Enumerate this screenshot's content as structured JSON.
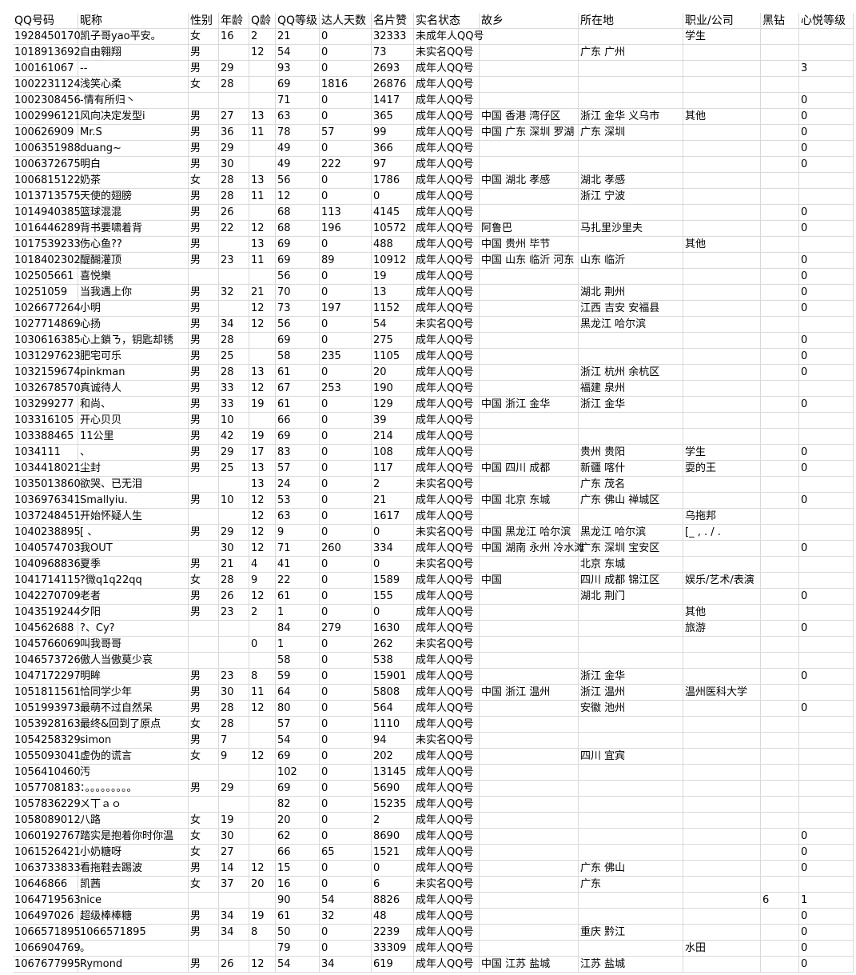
{
  "header": [
    "QQ号码",
    "昵称",
    "性别",
    "年龄",
    "Q龄",
    "QQ等级",
    "达人天数",
    "名片赞",
    "实名状态",
    "故乡",
    "所在地",
    "职业/公司",
    "黑钻",
    "心悦等级"
  ],
  "rows": [
    [
      1928450170,
      "凯子哥yao平安。",
      "女",
      16,
      2,
      21,
      0,
      32333,
      "未成年人QQ号",
      null,
      null,
      "学生",
      null,
      null
    ],
    [
      1018913692,
      "自由翱翔",
      "男",
      null,
      12,
      54,
      0,
      73,
      "未实名QQ号",
      null,
      "广东 广州",
      null,
      null,
      null
    ],
    [
      100161067,
      "--",
      "男",
      29,
      null,
      93,
      0,
      2693,
      "成年人QQ号",
      null,
      null,
      null,
      null,
      3
    ],
    [
      1002231124,
      "浅笑心柔",
      "女",
      28,
      null,
      69,
      1816,
      26876,
      "成年人QQ号",
      null,
      null,
      null,
      null,
      null
    ],
    [
      1002308456,
      "-情有所归丶",
      null,
      null,
      null,
      71,
      0,
      1417,
      "成年人QQ号",
      null,
      null,
      null,
      null,
      0
    ],
    [
      1002996121,
      "风向决定发型i",
      "男",
      27,
      13,
      63,
      0,
      365,
      "成年人QQ号",
      "中国 香港 湾仔区",
      "浙江 金华 义乌市",
      "其他",
      null,
      0
    ],
    [
      100626909,
      "Mr.S",
      "男",
      36,
      11,
      78,
      57,
      99,
      "成年人QQ号",
      "中国 广东 深圳 罗湖",
      "广东 深圳",
      null,
      null,
      0
    ],
    [
      1006351988,
      "duang~",
      "男",
      29,
      null,
      49,
      0,
      366,
      "成年人QQ号",
      null,
      null,
      null,
      null,
      0
    ],
    [
      1006372675,
      "明白",
      "男",
      30,
      null,
      49,
      222,
      97,
      "成年人QQ号",
      null,
      null,
      null,
      null,
      0
    ],
    [
      1006815122,
      "奶茶",
      "女",
      28,
      13,
      56,
      0,
      1786,
      "成年人QQ号",
      "中国 湖北 孝感",
      "湖北 孝感",
      null,
      null,
      null
    ],
    [
      1013713575,
      "天使的翅膀",
      "男",
      28,
      11,
      12,
      0,
      0,
      "成年人QQ号",
      null,
      "浙江 宁波",
      null,
      null,
      null
    ],
    [
      1014940385,
      "篮球混混",
      "男",
      26,
      null,
      68,
      113,
      4145,
      "成年人QQ号",
      null,
      null,
      null,
      null,
      0
    ],
    [
      1016446289,
      "背书要啸着背",
      "男",
      22,
      12,
      68,
      196,
      10572,
      "成年人QQ号",
      "阿鲁巴",
      "马扎里沙里夫",
      null,
      null,
      0
    ],
    [
      1017539233,
      "伤心鱼??",
      "男",
      null,
      13,
      69,
      0,
      488,
      "成年人QQ号",
      "中国 贵州 毕节",
      null,
      "其他",
      null,
      null
    ],
    [
      1018402302,
      "醍醐灌顶",
      "男",
      23,
      11,
      69,
      89,
      10912,
      "成年人QQ号",
      "中国 山东 临沂 河东",
      "山东 临沂",
      null,
      null,
      0
    ],
    [
      102505661,
      "喜悦樂",
      null,
      null,
      null,
      56,
      0,
      19,
      "成年人QQ号",
      null,
      null,
      null,
      null,
      0
    ],
    [
      10251059,
      "当我遇上你",
      "男",
      32,
      21,
      70,
      0,
      13,
      "成年人QQ号",
      null,
      "湖北 荆州",
      null,
      null,
      0
    ],
    [
      1026677264,
      "小明",
      "男",
      null,
      12,
      73,
      197,
      1152,
      "成年人QQ号",
      null,
      "江西 吉安 安福县",
      null,
      null,
      0
    ],
    [
      1027714869,
      "心扬",
      "男",
      34,
      12,
      56,
      0,
      54,
      "未实名QQ号",
      null,
      "黑龙江 哈尔滨",
      null,
      null,
      null
    ],
    [
      1030616385,
      "心上鎖ㄋ，钥匙却锈",
      "男",
      28,
      null,
      69,
      0,
      275,
      "成年人QQ号",
      null,
      null,
      null,
      null,
      0
    ],
    [
      1031297623,
      "肥宅可乐",
      "男",
      25,
      null,
      58,
      235,
      1105,
      "成年人QQ号",
      null,
      null,
      null,
      null,
      0
    ],
    [
      1032159674,
      "pinkman",
      "男",
      28,
      13,
      61,
      0,
      20,
      "成年人QQ号",
      null,
      "浙江 杭州 余杭区",
      null,
      null,
      0
    ],
    [
      1032678570,
      "真诚待人",
      "男",
      33,
      12,
      67,
      253,
      190,
      "成年人QQ号",
      null,
      "福建 泉州",
      null,
      null,
      null
    ],
    [
      103299277,
      "   和尚、",
      "男",
      33,
      19,
      61,
      0,
      129,
      "成年人QQ号",
      "中国 浙江 金华",
      "浙江 金华",
      null,
      null,
      0
    ],
    [
      103316105,
      "开心贝贝",
      "男",
      10,
      null,
      66,
      0,
      39,
      "成年人QQ号",
      null,
      null,
      null,
      null,
      null
    ],
    [
      103388465,
      "11公里",
      "男",
      42,
      19,
      69,
      0,
      214,
      "成年人QQ号",
      null,
      null,
      null,
      null,
      null
    ],
    [
      1034111,
      "、",
      "男",
      29,
      17,
      83,
      0,
      108,
      "成年人QQ号",
      null,
      "贵州 贵阳",
      "学生",
      null,
      0
    ],
    [
      1034418021,
      "尘封",
      "男",
      25,
      13,
      57,
      0,
      117,
      "成年人QQ号",
      "中国 四川 成都",
      "新疆 喀什",
      "耍的王",
      null,
      0
    ],
    [
      1035013860,
      "欲哭、已无泪",
      null,
      null,
      13,
      24,
      0,
      2,
      "未实名QQ号",
      null,
      "广东 茂名",
      null,
      null,
      null
    ],
    [
      1036976341,
      "  Smallyiu.",
      "男",
      10,
      12,
      53,
      0,
      21,
      "成年人QQ号",
      "中国 北京 东城",
      "广东 佛山 禅城区",
      null,
      null,
      0
    ],
    [
      1037248451,
      "开始怀疑人生",
      null,
      null,
      12,
      63,
      0,
      1617,
      "成年人QQ号",
      null,
      null,
      "乌拖邦",
      null,
      null
    ],
    [
      1040238895,
      "   [  、",
      "男",
      29,
      12,
      9,
      0,
      0,
      "未实名QQ号",
      "中国 黑龙江 哈尔滨",
      "黑龙江 哈尔滨",
      "[_ , . / .",
      null,
      null
    ],
    [
      1040574703,
      "我OUT",
      null,
      30,
      12,
      71,
      260,
      334,
      "成年人QQ号",
      "中国 湖南 永州 冷水滩",
      "广东 深圳 宝安区",
      null,
      null,
      0
    ],
    [
      1040968836,
      "夏季",
      "男",
      21,
      4,
      41,
      0,
      0,
      "未实名QQ号",
      null,
      "北京 东城",
      null,
      null,
      null
    ],
    [
      1041714115,
      "?微q1q22qq",
      "女",
      28,
      9,
      22,
      0,
      1589,
      "成年人QQ号",
      "中国",
      "四川 成都 锦江区",
      "娱乐/艺术/表演",
      null,
      null
    ],
    [
      1042270709,
      "老者",
      "男",
      26,
      12,
      61,
      0,
      155,
      "成年人QQ号",
      null,
      "湖北 荆门",
      null,
      null,
      0
    ],
    [
      1043519244,
      "夕阳",
      "男",
      23,
      2,
      1,
      0,
      0,
      "成年人QQ号",
      null,
      null,
      "其他",
      null,
      null
    ],
    [
      104562688,
      "?、Cy?",
      null,
      null,
      null,
      84,
      279,
      1630,
      "成年人QQ号",
      null,
      null,
      "旅游",
      null,
      0
    ],
    [
      1045766069,
      "叫我哥哥",
      null,
      null,
      0,
      1,
      0,
      262,
      "未实名QQ号",
      null,
      null,
      null,
      null,
      null
    ],
    [
      1046573726,
      "傲人当傲莫少哀",
      null,
      null,
      null,
      58,
      0,
      538,
      "成年人QQ号",
      null,
      null,
      null,
      null,
      null
    ],
    [
      1047172297,
      "明眸",
      "男",
      23,
      8,
      59,
      0,
      15901,
      "成年人QQ号",
      null,
      "浙江 金华",
      null,
      null,
      0
    ],
    [
      1051811561,
      "恰同学少年",
      "男",
      30,
      11,
      64,
      0,
      5808,
      "成年人QQ号",
      "中国 浙江 温州",
      "浙江 温州",
      "温州医科大学",
      null,
      null
    ],
    [
      1051993973,
      "最萌不过自然呆",
      "男",
      28,
      12,
      80,
      0,
      564,
      "成年人QQ号",
      null,
      "安徽 池州",
      null,
      null,
      0
    ],
    [
      1053928163,
      "最终&回到了原点",
      "女",
      28,
      null,
      57,
      0,
      1110,
      "成年人QQ号",
      null,
      null,
      null,
      null,
      null
    ],
    [
      1054258329,
      "simon",
      "男",
      7,
      null,
      54,
      0,
      94,
      "未实名QQ号",
      null,
      null,
      null,
      null,
      null
    ],
    [
      1055093041,
      "虚伪的谎言",
      "女",
      9,
      12,
      69,
      0,
      202,
      "成年人QQ号",
      null,
      "四川 宜宾",
      null,
      null,
      null
    ],
    [
      1056410460,
      "汚",
      null,
      null,
      null,
      102,
      0,
      13145,
      "成年人QQ号",
      null,
      null,
      null,
      null,
      null
    ],
    [
      1057708183,
      "：。。。。。。。。。",
      "男",
      29,
      null,
      69,
      0,
      5690,
      "成年人QQ号",
      null,
      null,
      null,
      null,
      null
    ],
    [
      1057836229,
      "ㄨ丅ａｏ",
      null,
      null,
      null,
      82,
      0,
      15235,
      "成年人QQ号",
      null,
      null,
      null,
      null,
      null
    ],
    [
      1058089012,
      "八路",
      "女",
      19,
      null,
      20,
      0,
      2,
      "成年人QQ号",
      null,
      null,
      null,
      null,
      null
    ],
    [
      1060192767,
      "踏实是抱着你时你温",
      "女",
      30,
      null,
      62,
      0,
      8690,
      "成年人QQ号",
      null,
      null,
      null,
      null,
      0
    ],
    [
      1061526421,
      "小奶糖呀",
      "女",
      27,
      null,
      66,
      65,
      1521,
      "成年人QQ号",
      null,
      null,
      null,
      null,
      0
    ],
    [
      1063733833,
      "看拖鞋去踢波",
      "男",
      14,
      12,
      15,
      0,
      0,
      "成年人QQ号",
      null,
      "广东 佛山",
      null,
      null,
      0
    ],
    [
      10646866,
      "凯茜",
      "女",
      37,
      20,
      16,
      0,
      6,
      "未实名QQ号",
      null,
      "广东",
      null,
      null,
      null
    ],
    [
      1064719563,
      "nice",
      null,
      null,
      null,
      90,
      54,
      8826,
      "成年人QQ号",
      null,
      null,
      null,
      6,
      1
    ],
    [
      106497026,
      "超级棒棒糖",
      "男",
      34,
      19,
      61,
      32,
      48,
      "成年人QQ号",
      null,
      null,
      null,
      null,
      0
    ],
    [
      1066571895,
      "1066571895",
      "男",
      34,
      8,
      50,
      0,
      2239,
      "成年人QQ号",
      null,
      "重庆 黔江",
      null,
      null,
      0
    ],
    [
      1066904769,
      "。",
      null,
      null,
      null,
      79,
      0,
      33309,
      "成年人QQ号",
      null,
      null,
      "水田",
      null,
      0
    ],
    [
      1067677995,
      "Rymond",
      "男",
      26,
      12,
      54,
      34,
      619,
      "成年人QQ号",
      "中国 江苏 盐城",
      "江苏 盐城",
      null,
      null,
      0
    ]
  ]
}
